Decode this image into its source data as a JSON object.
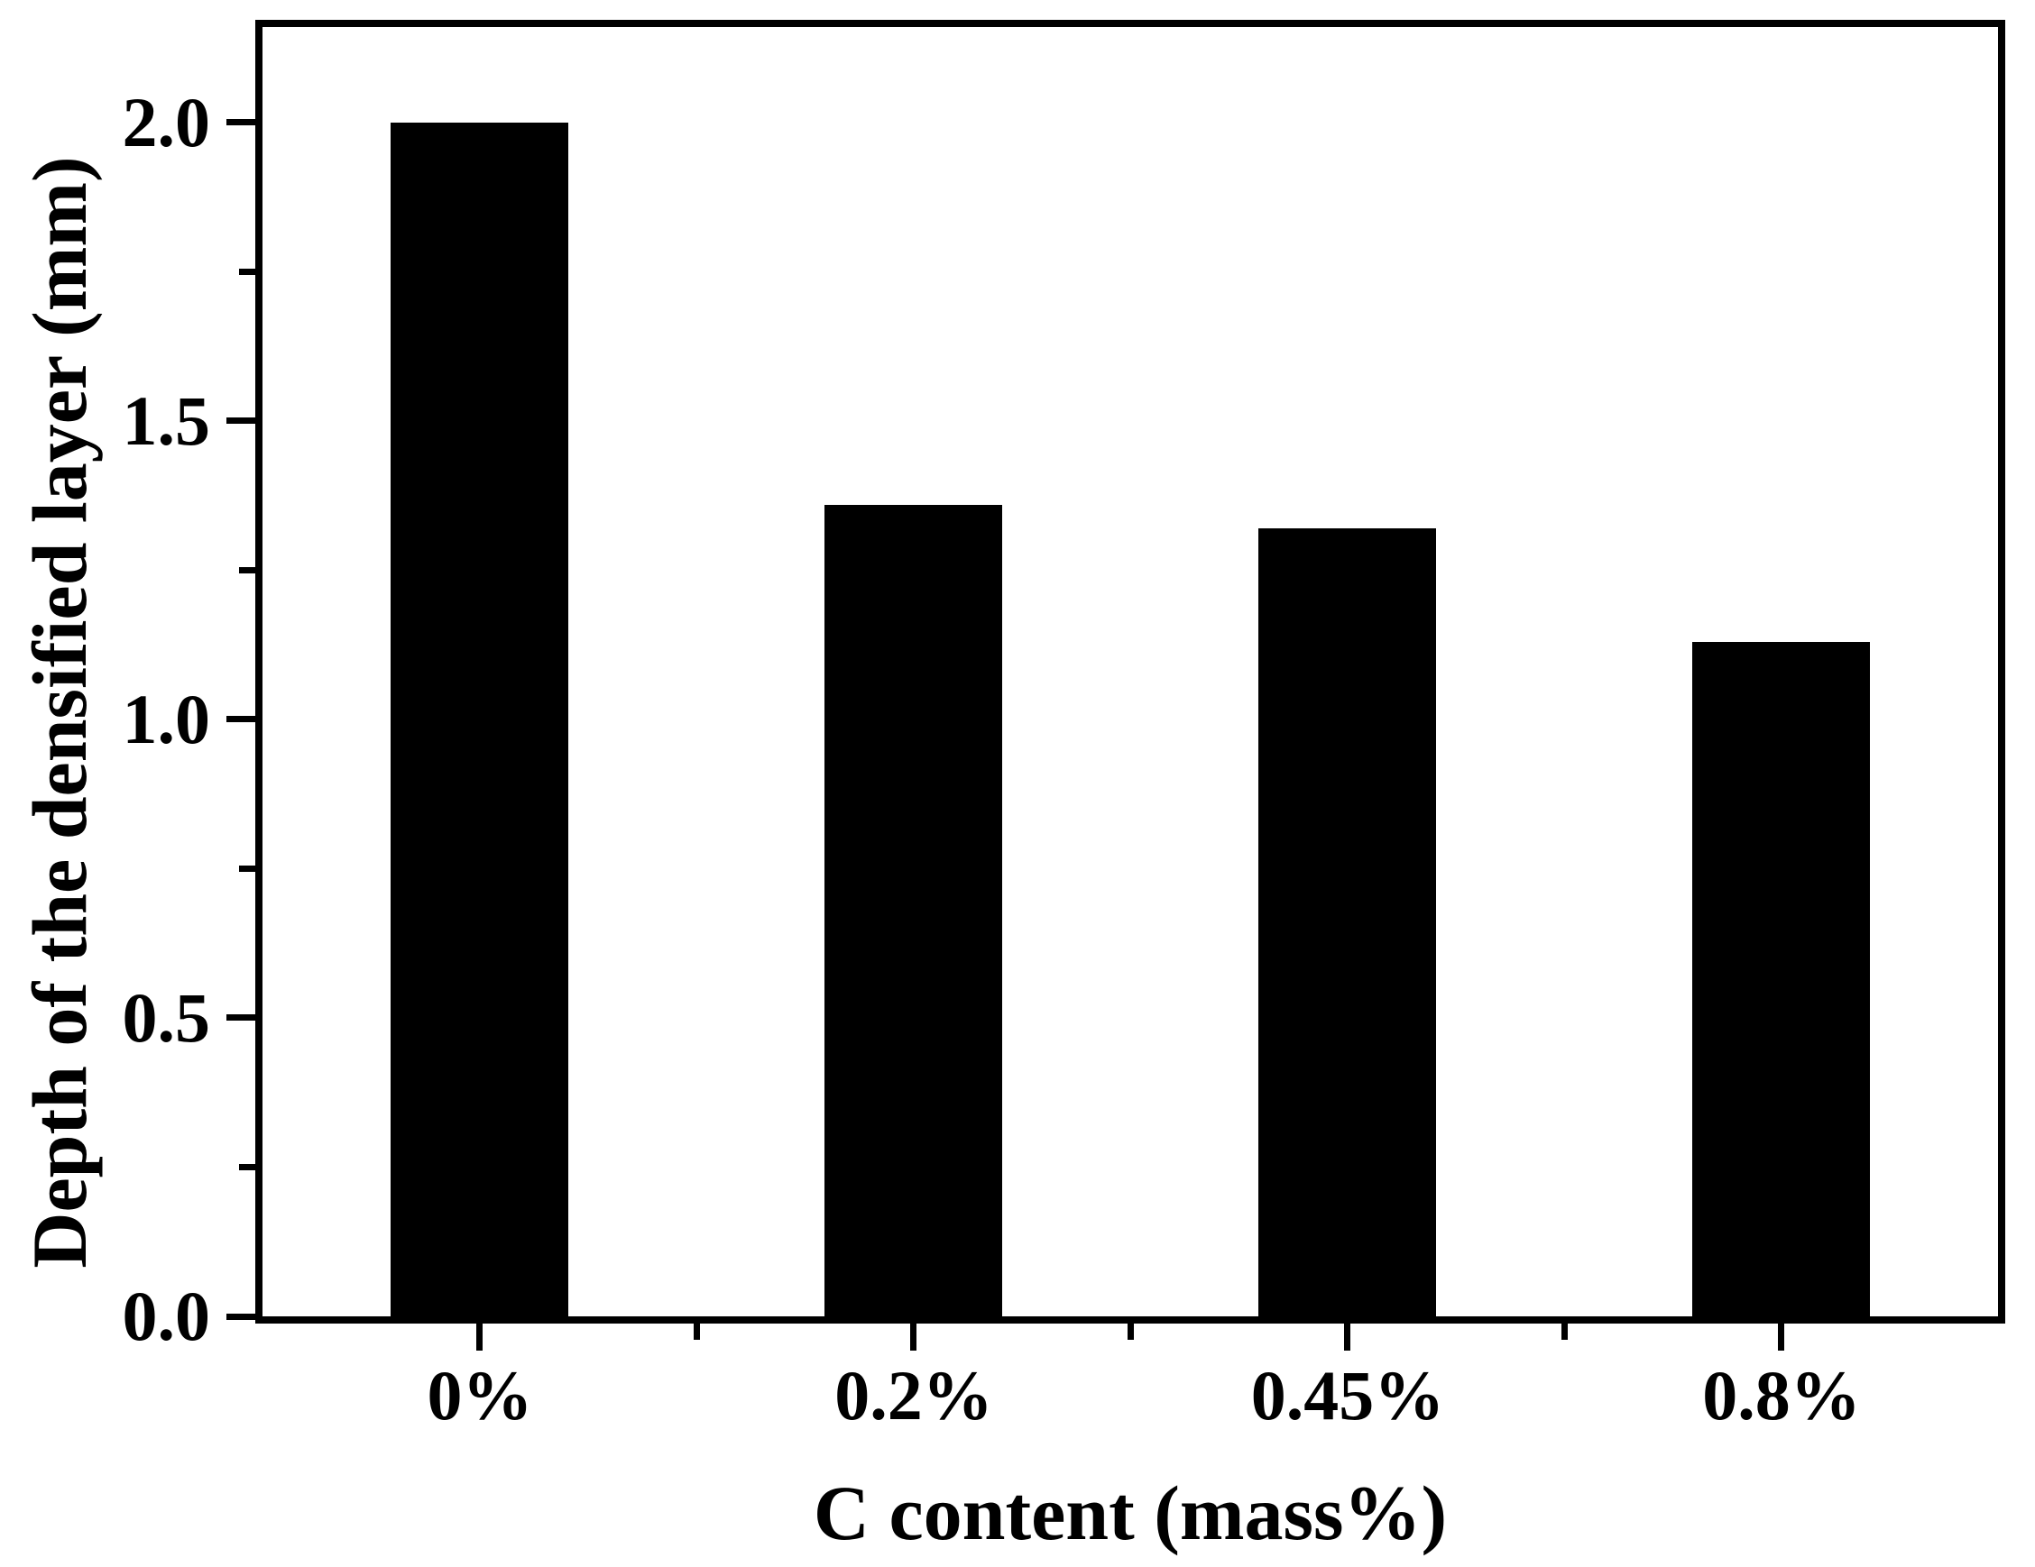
{
  "figure": {
    "background": "#ffffff"
  },
  "chart_data": {
    "type": "bar",
    "title": "",
    "categories": [
      "0%",
      "0.2%",
      "0.45%",
      "0.8%"
    ],
    "values": [
      2.0,
      1.36,
      1.32,
      1.13
    ],
    "xlabel": "C content (mass%)",
    "ylabel": "Depth of the densified layer (mm)",
    "ylim": [
      0,
      2.16
    ],
    "yticks": [
      0.0,
      0.5,
      1.0,
      1.5,
      2.0
    ],
    "ytick_labels": [
      "0.0",
      "0.5",
      "1.0",
      "1.5",
      "2.0"
    ],
    "y_minor_ticks": [
      0.25,
      0.75,
      1.25,
      1.75
    ],
    "x_minor_ticks_at_category_boundaries": true,
    "bar_color": "#000000",
    "axis_color": "#000000",
    "background": "#ffffff",
    "grid": false,
    "legend": null,
    "bar_width_fraction": 0.41
  }
}
